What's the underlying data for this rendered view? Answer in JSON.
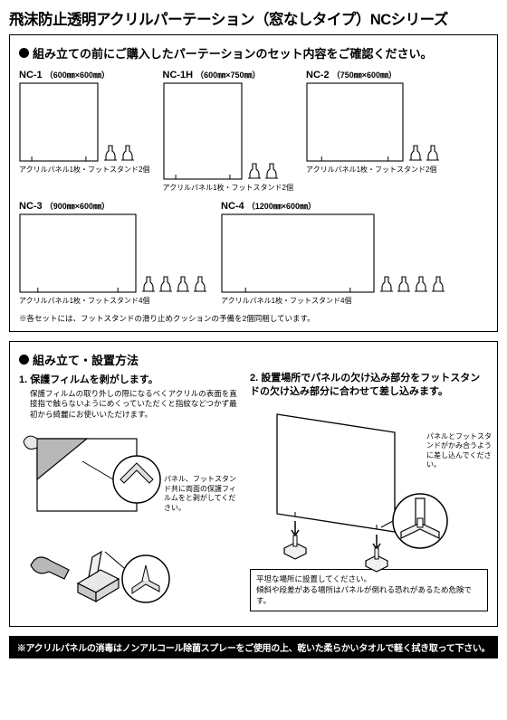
{
  "title": "飛沫防止透明アクリルパーテーション（窓なしタイプ）NCシリーズ",
  "section1": {
    "heading": "組み立ての前にご購入したパーテーションのセット内容をご確認ください。",
    "variants": [
      {
        "id": "NC-1",
        "dim": "（600㎜×600㎜）",
        "caption": "アクリルパネル1枚・フットスタンド2個",
        "pw": 88,
        "ph": 88,
        "feet": 2
      },
      {
        "id": "NC-1H",
        "dim": "（600㎜×750㎜）",
        "caption": "アクリルパネル1枚・フットスタンド2個",
        "pw": 88,
        "ph": 108,
        "feet": 2
      },
      {
        "id": "NC-2",
        "dim": "（750㎜×600㎜）",
        "caption": "アクリルパネル1枚・フットスタンド2個",
        "pw": 108,
        "ph": 88,
        "feet": 2
      },
      {
        "id": "NC-3",
        "dim": "（900㎜×600㎜）",
        "caption": "アクリルパネル1枚・フットスタンド4個",
        "pw": 130,
        "ph": 88,
        "feet": 4
      },
      {
        "id": "NC-4",
        "dim": "（1200㎜×600㎜）",
        "caption": "アクリルパネル1枚・フットスタンド4個",
        "pw": 170,
        "ph": 88,
        "feet": 4
      }
    ],
    "set_note": "※各セットには、フットスタンドの滑り止めクッションの予備を2個同梱しています。"
  },
  "section2": {
    "heading": "組み立て・設置方法",
    "step1_title": "1. 保護フィルムを剥がします。",
    "step1_body": "保護フィルムの取り外しの際になるべくアクリルの表面を直接指で触らないようにめくっていただくと指紋などつかず最初から綺麗にお使いいただけます。",
    "step1_callout_a": "パネル、フットスタンド共に両面の保護フィルムをと剥がしてください。",
    "step2_title": "2. 設置場所でパネルの欠け込み部分をフットスタンドの欠け込み部分に合わせて差し込みます。",
    "step2_callout": "パネルとフットスタンドがかみ合うように差し込んでください。",
    "note_box": "平坦な場所に設置してください。\n傾斜や段差がある場所はパネルが倒れる恐れがあるため危険です。"
  },
  "disclaimer": "※アクリルパネルの消毒はノンアルコール除菌スプレーをご使用の上、乾いた柔らかいタオルで軽く拭き取って下さい。",
  "colors": {
    "stroke": "#000000",
    "fill_light": "#e8e8e8",
    "fill_mid": "#b8b8b8",
    "fill_dark": "#707070",
    "white": "#ffffff"
  }
}
